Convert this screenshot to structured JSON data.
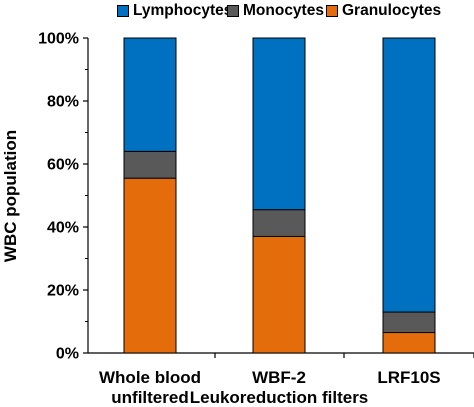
{
  "chart_data": {
    "type": "bar",
    "stacked": true,
    "title": "",
    "xlabel": "",
    "ylabel": "WBC population",
    "ylim": [
      0,
      100
    ],
    "y_ticks": [
      "0%",
      "20%",
      "40%",
      "60%",
      "80%",
      "100%"
    ],
    "y_tick_values": [
      0,
      20,
      40,
      60,
      80,
      100
    ],
    "categories": [
      [
        "Whole blood",
        "unfiltered"
      ],
      [
        "WBF-2",
        "Leukoreduction filters"
      ],
      [
        "LRF10S",
        ""
      ]
    ],
    "series": [
      {
        "name": "Granulocytes",
        "color": "#E46C0A",
        "values": [
          55.5,
          37,
          6.5
        ]
      },
      {
        "name": "Monocytes",
        "color": "#595959",
        "values": [
          8.5,
          8.5,
          6.5
        ]
      },
      {
        "name": "Lymphocytes",
        "color": "#0070C0",
        "values": [
          36,
          54.5,
          87
        ]
      }
    ],
    "legend": {
      "position": "top",
      "order": [
        "Lymphocytes",
        "Monocytes",
        "Granulocytes"
      ]
    },
    "grid": false
  }
}
